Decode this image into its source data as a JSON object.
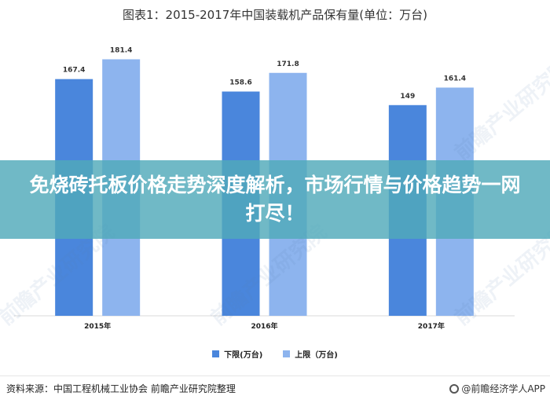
{
  "title": "图表1：2015-2017年中国装载机产品保有量(单位：万台)",
  "banner": "免烧砖托板价格走势深度解析，市场行情与价格趋势一网打尽！",
  "source": "资料来源：中国工程机械工业协会 前瞻产业研究院整理",
  "brand": "@前瞻经济学人APP",
  "watermark": "前瞻产业研究院",
  "colors": {
    "lower": "#4a86dc",
    "upper": "#8db4ee",
    "axis": "#d9d9d9",
    "banner": "#50aab9"
  },
  "chart_data": {
    "type": "bar",
    "title": "图表1：2015-2017年中国装载机产品保有量(单位：万台)",
    "categories": [
      "2015年",
      "2016年",
      "2017年"
    ],
    "series": [
      {
        "name": "下限(万台)",
        "values": [
          167.4,
          158.6,
          149
        ]
      },
      {
        "name": "上限（万台)",
        "values": [
          181.4,
          171.8,
          161.4
        ]
      }
    ],
    "value_labels": [
      [
        "167.4",
        "158.6",
        "149"
      ],
      [
        "181.4",
        "171.8",
        "161.4"
      ]
    ],
    "ylim": [
      0,
      190
    ],
    "xlabel": "",
    "ylabel": "",
    "grid": false,
    "legend_position": "bottom"
  }
}
